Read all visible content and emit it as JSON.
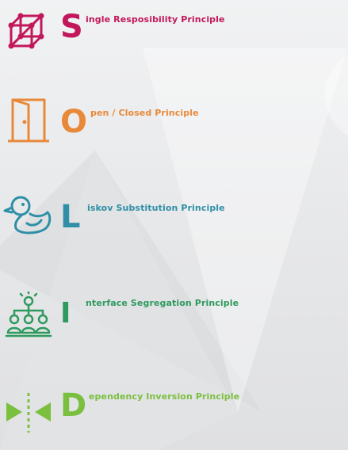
{
  "principles": [
    {
      "letter": "S",
      "rest": "ingle Resposibility Principle",
      "color": "#c2185b",
      "icon": "cube-network-icon"
    },
    {
      "letter": "O",
      "rest": "pen / Closed Principle",
      "color": "#e8893a",
      "icon": "door-icon"
    },
    {
      "letter": "L",
      "rest": "iskov Substitution Principle",
      "color": "#2f8fa6",
      "icon": "duck-icon"
    },
    {
      "letter": "I",
      "rest": "nterface Segregation Principle",
      "color": "#2e9a5e",
      "icon": "people-idea-icon"
    },
    {
      "letter": "D",
      "rest": "ependency Inversion Principle",
      "color": "#7bbf3f",
      "icon": "arrows-inward-icon"
    }
  ]
}
